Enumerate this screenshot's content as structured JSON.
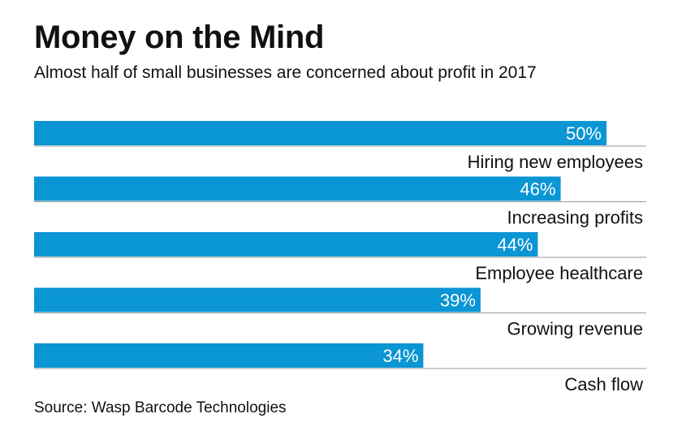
{
  "title": "Money on the Mind",
  "subtitle": "Almost half of small businesses are concerned about profit in 2017",
  "source": "Source: Wasp Barcode Technologies",
  "colors": {
    "bar": "#0a95d4",
    "divider": "#9a9a9a",
    "bar_text": "#ffffff",
    "text": "#111111"
  },
  "chart_data": {
    "type": "bar",
    "orientation": "horizontal",
    "categories": [
      "Hiring new employees",
      "Increasing profits",
      "Employee healthcare",
      "Growing revenue",
      "Cash flow"
    ],
    "values": [
      50,
      46,
      44,
      39,
      34
    ],
    "value_labels": [
      "50%",
      "46%",
      "44%",
      "39%",
      "34%"
    ],
    "unit": "%",
    "title": "Money on the Mind",
    "xlabel": "",
    "ylabel": "",
    "xlim": [
      0,
      100
    ],
    "grid": false,
    "legend": "none"
  }
}
